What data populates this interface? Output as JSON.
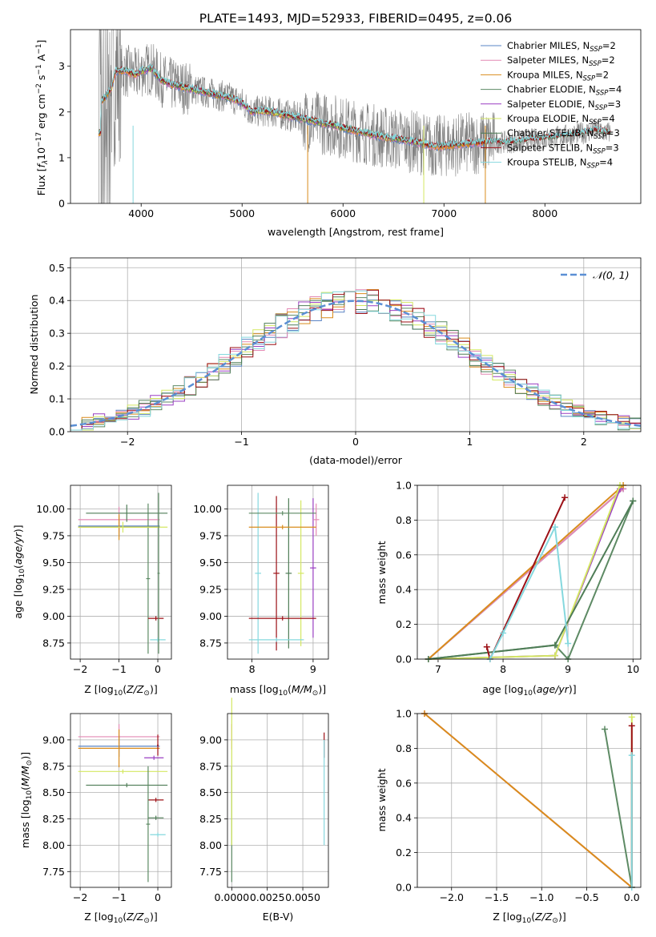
{
  "title": "PLATE=1493, MJD=52933, FIBERID=0495, z=0.06",
  "colors": {
    "Chabrier MILES": "#5a84c4",
    "Salpeter MILES": "#e389b4",
    "Kroupa MILES": "#d98c1c",
    "Chabrier ELODIE": "#5d8a64",
    "Salpeter ELODIE": "#9a3fc2",
    "Kroupa ELODIE": "#d4e862",
    "Chabrier STELIB": "#4f7d57",
    "Salpeter STELIB": "#9c1016",
    "Kroupa STELIB": "#85d8de",
    "data": "#808080",
    "normal": "#5b8fd4"
  },
  "chart_data": [
    {
      "type": "line",
      "name": "spectrum",
      "xlabel": "wavelength [Angstrom, rest frame]",
      "ylabel_parts": [
        "Flux [",
        "f",
        "λ",
        "10",
        "−17",
        " erg cm",
        "−2",
        " s",
        "−1",
        " A",
        "−1",
        "]"
      ],
      "xlim": [
        3300,
        8950
      ],
      "ylim": [
        0,
        3.8
      ],
      "xticks": [
        4000,
        5000,
        6000,
        7000,
        8000
      ],
      "yticks": [
        0,
        1,
        2,
        3
      ],
      "legend": [
        {
          "name": "Chabrier MILES",
          "nssp": "2"
        },
        {
          "name": "Salpeter MILES",
          "nssp": "2"
        },
        {
          "name": "Kroupa MILES",
          "nssp": "2"
        },
        {
          "name": "Chabrier ELODIE",
          "nssp": "4"
        },
        {
          "name": "Salpeter ELODIE",
          "nssp": "3"
        },
        {
          "name": "Kroupa ELODIE",
          "nssp": "4"
        },
        {
          "name": "Chabrier STELIB",
          "nssp": "3"
        },
        {
          "name": "Salpeter STELIB",
          "nssp": "3"
        },
        {
          "name": "Kroupa STELIB",
          "nssp": "4"
        }
      ],
      "legend_placement": "upper-right",
      "model_curve": [
        [
          3600,
          2.2
        ],
        [
          3700,
          2.5
        ],
        [
          3750,
          2.9
        ],
        [
          3850,
          2.9
        ],
        [
          3950,
          2.8
        ],
        [
          4000,
          2.9
        ],
        [
          4100,
          2.95
        ],
        [
          4200,
          2.7
        ],
        [
          4300,
          2.6
        ],
        [
          4400,
          2.55
        ],
        [
          4500,
          2.5
        ],
        [
          4600,
          2.45
        ],
        [
          4700,
          2.4
        ],
        [
          4800,
          2.35
        ],
        [
          4900,
          2.3
        ],
        [
          5000,
          2.2
        ],
        [
          5100,
          2.0
        ],
        [
          5200,
          2.02
        ],
        [
          5300,
          2.0
        ],
        [
          5400,
          1.95
        ],
        [
          5500,
          1.9
        ],
        [
          5600,
          1.85
        ],
        [
          5700,
          1.8
        ],
        [
          5800,
          1.75
        ],
        [
          5900,
          1.72
        ],
        [
          6000,
          1.65
        ],
        [
          6100,
          1.6
        ],
        [
          6200,
          1.55
        ],
        [
          6300,
          1.5
        ],
        [
          6400,
          1.45
        ],
        [
          6500,
          1.42
        ],
        [
          6600,
          1.38
        ],
        [
          6700,
          1.35
        ],
        [
          6800,
          1.3
        ],
        [
          6900,
          1.25
        ],
        [
          7000,
          1.25
        ],
        [
          7100,
          1.28
        ],
        [
          7200,
          1.3
        ],
        [
          7300,
          1.32
        ],
        [
          7400,
          1.33
        ],
        [
          7500,
          1.35
        ],
        [
          7600,
          1.33
        ],
        [
          7700,
          1.35
        ],
        [
          7800,
          1.38
        ],
        [
          7900,
          1.4
        ],
        [
          8000,
          1.42
        ],
        [
          8100,
          1.45
        ],
        [
          8200,
          1.48
        ],
        [
          8300,
          1.5
        ],
        [
          8400,
          1.55
        ],
        [
          8500,
          1.6
        ],
        [
          8600,
          1.55
        ],
        [
          8700,
          1.55
        ]
      ],
      "data_range": [
        3580,
        8650
      ],
      "grid": false
    },
    {
      "type": "line",
      "name": "residual-distribution",
      "xlabel": "(data-model)/error",
      "ylabel": "Normed distribution",
      "xlim": [
        -2.5,
        2.5
      ],
      "ylim": [
        0,
        0.53
      ],
      "xticks": [
        -2,
        -1,
        0,
        1,
        2
      ],
      "yticks": [
        0.0,
        0.1,
        0.2,
        0.3,
        0.4,
        0.5
      ],
      "normal_label": "𝒩(0, 1)",
      "legend_placement": "upper-right",
      "grid": true
    },
    {
      "type": "scatter",
      "name": "age-vs-Z",
      "xlabel_parts": [
        "Z [log",
        "10",
        "(",
        "Z/Z",
        "⊙",
        ")]"
      ],
      "ylabel_parts": [
        "age  [log",
        "10",
        "(",
        "age/yr",
        ")]"
      ],
      "xlim": [
        -2.25,
        0.35
      ],
      "ylim": [
        8.6,
        10.22
      ],
      "xticks": [
        -2,
        -1,
        0
      ],
      "yticks": [
        8.75,
        9.0,
        9.25,
        9.5,
        9.75,
        10.0
      ],
      "errorbars": [
        {
          "s": "Chabrier MILES",
          "x": -1.0,
          "y": 9.84,
          "xerr": 1.05,
          "yerr": 0.1
        },
        {
          "s": "Salpeter MILES",
          "x": -1.0,
          "y": 9.9,
          "xerr": 1.05,
          "yerr": 0.12
        },
        {
          "s": "Kroupa MILES",
          "x": -1.0,
          "y": 9.83,
          "xerr": 1.05,
          "yerr": 0.12
        },
        {
          "s": "Chabrier ELODIE",
          "x": -0.25,
          "y": 9.35,
          "xerr": 0.05,
          "yerr": 0.7
        },
        {
          "s": "Kroupa ELODIE",
          "x": -0.9,
          "y": 9.83,
          "xerr": 1.15,
          "yerr": 0.05
        },
        {
          "s": "Chabrier STELIB",
          "x": -0.8,
          "y": 9.96,
          "xerr": 1.05,
          "yerr": 0.08
        },
        {
          "s": "Salpeter STELIB",
          "x": -0.05,
          "y": 8.98,
          "xerr": 0.2,
          "yerr": 0.02
        },
        {
          "s": "Kroupa STELIB",
          "x": 0.0,
          "y": 8.78,
          "xerr": 0.2,
          "yerr": 0.02
        },
        {
          "s": "Chabrier ELODIE",
          "x": 0.02,
          "y": 9.4,
          "xerr": 0.03,
          "yerr": 0.75
        }
      ],
      "grid": true
    },
    {
      "type": "scatter",
      "name": "age-vs-mass",
      "xlabel_parts": [
        "mass [log",
        "10",
        "(",
        "M/M",
        "⊙",
        ")]"
      ],
      "ylabel_parts": [],
      "xlim": [
        7.6,
        9.25
      ],
      "ylim": [
        8.6,
        10.22
      ],
      "xticks": [
        8,
        9
      ],
      "yticks": [
        8.75,
        9.0,
        9.25,
        9.5,
        9.75,
        10.0
      ],
      "errorbars": [
        {
          "s": "Kroupa STELIB",
          "x": 8.1,
          "y": 9.4,
          "xerr": 0.05,
          "yerr": 0.75
        },
        {
          "s": "Salpeter STELIB",
          "x": 8.4,
          "y": 9.4,
          "xerr": 0.05,
          "yerr": 0.72
        },
        {
          "s": "Chabrier STELIB",
          "x": 8.6,
          "y": 9.4,
          "xerr": 0.05,
          "yerr": 0.7
        },
        {
          "s": "Kroupa ELODIE",
          "x": 8.8,
          "y": 9.4,
          "xerr": 0.05,
          "yerr": 0.68
        },
        {
          "s": "Salpeter ELODIE",
          "x": 9.0,
          "y": 9.45,
          "xerr": 0.05,
          "yerr": 0.65
        },
        {
          "s": "Salpeter MILES",
          "x": 9.05,
          "y": 9.9,
          "xerr": 0.05,
          "yerr": 0.15
        },
        {
          "s": "Chabrier ELODIE",
          "x": 8.5,
          "y": 9.96,
          "xerr": 0.55,
          "yerr": 0.02
        },
        {
          "s": "Kroupa MILES",
          "x": 8.5,
          "y": 9.83,
          "xerr": 0.55,
          "yerr": 0.02
        },
        {
          "s": "Salpeter STELIB",
          "x": 8.5,
          "y": 8.98,
          "xerr": 0.55,
          "yerr": 0.02
        },
        {
          "s": "Kroupa STELIB",
          "x": 8.4,
          "y": 8.78,
          "xerr": 0.45,
          "yerr": 0.02
        }
      ],
      "grid": true
    },
    {
      "type": "line",
      "name": "mass-weight-vs-age",
      "xlabel_parts": [
        "age  [log",
        "10",
        "(",
        "age/yr",
        ")]"
      ],
      "ylabel": "mass weight",
      "xlim": [
        6.68,
        10.12
      ],
      "ylim": [
        0,
        1.0
      ],
      "xticks": [
        7,
        8,
        9,
        10
      ],
      "yticks": [
        0.0,
        0.2,
        0.4,
        0.6,
        0.8,
        1.0
      ],
      "series": [
        {
          "s": "Chabrier MILES",
          "x": [
            6.85,
            9.85
          ],
          "y": [
            0.0,
            0.98
          ]
        },
        {
          "s": "Salpeter MILES",
          "x": [
            6.85,
            9.85
          ],
          "y": [
            0.0,
            0.98
          ]
        },
        {
          "s": "Kroupa MILES",
          "x": [
            6.85,
            9.85
          ],
          "y": [
            0.0,
            1.0
          ]
        },
        {
          "s": "Chabrier ELODIE",
          "x": [
            6.85,
            8.8,
            9.0,
            10.0
          ],
          "y": [
            0.0,
            0.08,
            0.0,
            0.91
          ]
        },
        {
          "s": "Salpeter ELODIE",
          "x": [
            6.85,
            8.8,
            9.8
          ],
          "y": [
            0.0,
            0.02,
            0.98
          ]
        },
        {
          "s": "Kroupa ELODIE",
          "x": [
            6.85,
            8.8,
            9.8
          ],
          "y": [
            0.0,
            0.02,
            1.0
          ]
        },
        {
          "s": "Chabrier STELIB",
          "x": [
            6.85,
            8.8,
            10.0
          ],
          "y": [
            0.0,
            0.08,
            0.91
          ]
        },
        {
          "s": "Salpeter STELIB",
          "x": [
            7.75,
            7.8,
            8.95
          ],
          "y": [
            0.07,
            0.0,
            0.93
          ]
        },
        {
          "s": "Kroupa STELIB",
          "x": [
            7.8,
            8.0,
            8.8,
            9.0
          ],
          "y": [
            0.0,
            0.15,
            0.76,
            0.09
          ]
        }
      ],
      "grid": true
    },
    {
      "type": "scatter",
      "name": "mass-vs-Z",
      "xlabel_parts": [
        "Z [log",
        "10",
        "(",
        "Z/Z",
        "⊙",
        ")]"
      ],
      "ylabel_parts": [
        "mass [log",
        "10",
        "(",
        "M/M",
        "⊙",
        ")]"
      ],
      "xlim": [
        -2.25,
        0.35
      ],
      "ylim": [
        7.6,
        9.25
      ],
      "xticks": [
        -2,
        -1,
        0
      ],
      "yticks": [
        7.75,
        8.0,
        8.25,
        8.5,
        8.75,
        9.0
      ],
      "errorbars": [
        {
          "s": "Salpeter MILES",
          "x": -1.0,
          "y": 9.03,
          "xerr": 1.05,
          "yerr": 0.12
        },
        {
          "s": "Chabrier MILES",
          "x": -1.0,
          "y": 8.94,
          "xerr": 1.05,
          "yerr": 0.1
        },
        {
          "s": "Kroupa MILES",
          "x": -1.0,
          "y": 8.92,
          "xerr": 1.05,
          "yerr": 0.18
        },
        {
          "s": "Salpeter ELODIE",
          "x": -0.1,
          "y": 8.83,
          "xerr": 0.25,
          "yerr": 0.02
        },
        {
          "s": "Kroupa ELODIE",
          "x": -0.9,
          "y": 8.7,
          "xerr": 1.15,
          "yerr": 0.02
        },
        {
          "s": "Chabrier STELIB",
          "x": -0.8,
          "y": 8.57,
          "xerr": 1.05,
          "yerr": 0.02
        },
        {
          "s": "Salpeter STELIB",
          "x": -0.05,
          "y": 8.43,
          "xerr": 0.2,
          "yerr": 0.02
        },
        {
          "s": "Chabrier ELODIE",
          "x": -0.25,
          "y": 8.2,
          "xerr": 0.05,
          "yerr": 0.55
        },
        {
          "s": "Chabrier STELIB",
          "x": -0.05,
          "y": 8.26,
          "xerr": 0.2,
          "yerr": 0.02
        },
        {
          "s": "Kroupa STELIB",
          "x": 0.0,
          "y": 8.1,
          "xerr": 0.2,
          "yerr": 0.02
        },
        {
          "s": "Salpeter STELIB",
          "x": 0.0,
          "y": 8.95,
          "xerr": 0.02,
          "yerr": 0.1
        }
      ],
      "grid": true
    },
    {
      "type": "scatter",
      "name": "mass-vs-ebv",
      "xlabel": "E(B-V)",
      "ylabel_parts": [],
      "xlim": [
        -0.0003,
        0.0068
      ],
      "ylim": [
        7.6,
        9.25
      ],
      "xticklabels": [
        "0.0000",
        "0.0025",
        "0.0050"
      ],
      "xticks": [
        0.0,
        0.0025,
        0.005
      ],
      "yticks": [
        7.75,
        8.0,
        8.25,
        8.5,
        8.75,
        9.0
      ],
      "errorbars": [
        {
          "s": "Salpeter MILES",
          "x": 0.0,
          "y": 9.03,
          "xerr": 0.0,
          "yerr": 0.12
        },
        {
          "s": "Chabrier ELODIE",
          "x": 0.0,
          "y": 8.2,
          "xerr": 0.0,
          "yerr": 0.55
        },
        {
          "s": "Kroupa ELODIE",
          "x": 0.0,
          "y": 8.7,
          "xerr": 0.0,
          "yerr": 0.7
        },
        {
          "s": "Salpeter STELIB",
          "x": 0.0065,
          "y": 8.95,
          "xerr": 0.0,
          "yerr": 0.12
        },
        {
          "s": "Kroupa STELIB",
          "x": 0.0065,
          "y": 8.5,
          "xerr": 0.0,
          "yerr": 0.5
        }
      ],
      "grid": true
    },
    {
      "type": "line",
      "name": "mass-weight-vs-Z",
      "xlabel_parts": [
        "Z [log",
        "10",
        "(",
        "Z/Z",
        "⊙",
        ")]"
      ],
      "ylabel": "mass weight",
      "xlim": [
        -2.38,
        0.1
      ],
      "ylim": [
        0,
        1.0
      ],
      "xticks": [
        -2.0,
        -1.5,
        -1.0,
        -0.5,
        0.0
      ],
      "xticklabels": [
        "−2.0",
        "−1.5",
        "−1.0",
        "−0.5",
        "0.0"
      ],
      "yticks": [
        0.0,
        0.2,
        0.4,
        0.6,
        0.8,
        1.0
      ],
      "series": [
        {
          "s": "Salpeter MILES",
          "x": [
            -2.3,
            0.0
          ],
          "y": [
            1.0,
            0.0
          ]
        },
        {
          "s": "Kroupa MILES",
          "x": [
            -2.3,
            0.0
          ],
          "y": [
            1.0,
            0.0
          ]
        },
        {
          "s": "Chabrier ELODIE",
          "x": [
            -0.3,
            0.0
          ],
          "y": [
            0.91,
            0.0
          ]
        },
        {
          "s": "Kroupa ELODIE",
          "x": [
            0.0,
            0.0
          ],
          "y": [
            0.0,
            0.98
          ]
        },
        {
          "s": "Salpeter STELIB",
          "x": [
            0.0,
            0.0
          ],
          "y": [
            0.0,
            0.93
          ]
        },
        {
          "s": "Kroupa STELIB",
          "x": [
            0.0,
            0.0
          ],
          "y": [
            0.0,
            0.76
          ]
        }
      ],
      "grid": true
    }
  ]
}
